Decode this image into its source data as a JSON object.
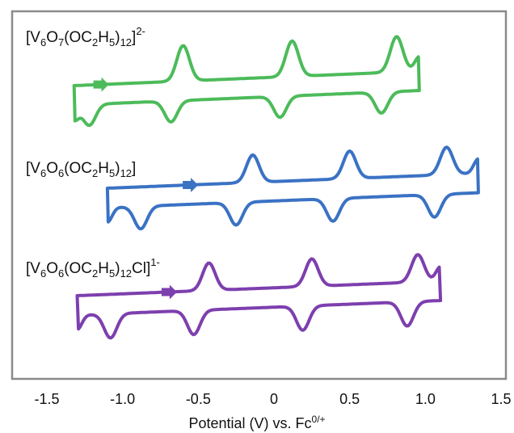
{
  "chart_data": {
    "type": "line",
    "xlabel_parts": {
      "main": "Potential (V) vs. Fc",
      "sup": "0/+"
    },
    "xlim": [
      -1.5,
      1.5
    ],
    "ticks": [
      "-1.5",
      "-1.0",
      "-0.5",
      "0",
      "0.5",
      "1.0",
      "1.5"
    ],
    "tick_values": [
      -1.5,
      -1.0,
      -0.5,
      0,
      0.5,
      1.0,
      1.5
    ],
    "grid": false,
    "series": [
      {
        "label_parts": [
          "[V",
          "6",
          "O",
          "7",
          "(OC",
          "2",
          "H",
          "5",
          ")",
          "12",
          "]",
          "2-",
          ""
        ],
        "color": "#4cbb5a",
        "x_range": [
          -1.32,
          0.96
        ],
        "peaks_oxidation": [
          -0.6,
          0.12,
          0.81
        ],
        "peaks_reduction": [
          -1.22,
          -0.68,
          0.04,
          0.71
        ],
        "scan_arrow_x": -1.15
      },
      {
        "label_parts": [
          "[V",
          "6",
          "O",
          "6",
          "(OC",
          "2",
          "H",
          "5",
          ")",
          "12",
          "]",
          "",
          ""
        ],
        "color": "#3a72c4",
        "x_range": [
          -1.1,
          1.35
        ],
        "peaks_oxidation": [
          -0.14,
          0.5,
          1.14
        ],
        "peaks_reduction": [
          -0.88,
          -0.25,
          0.39,
          1.06
        ],
        "scan_arrow_x": -0.56
      },
      {
        "label_parts": [
          "[V",
          "6",
          "O",
          "6",
          "(OC",
          "2",
          "H",
          "5",
          ")",
          "12",
          "Cl]",
          "1-",
          ""
        ],
        "color": "#7d3fae",
        "x_range": [
          -1.3,
          1.1
        ],
        "peaks_oxidation": [
          -0.43,
          0.25,
          0.95
        ],
        "peaks_reduction": [
          -1.08,
          -0.53,
          0.19,
          0.88
        ],
        "scan_arrow_x": -0.7
      }
    ]
  }
}
